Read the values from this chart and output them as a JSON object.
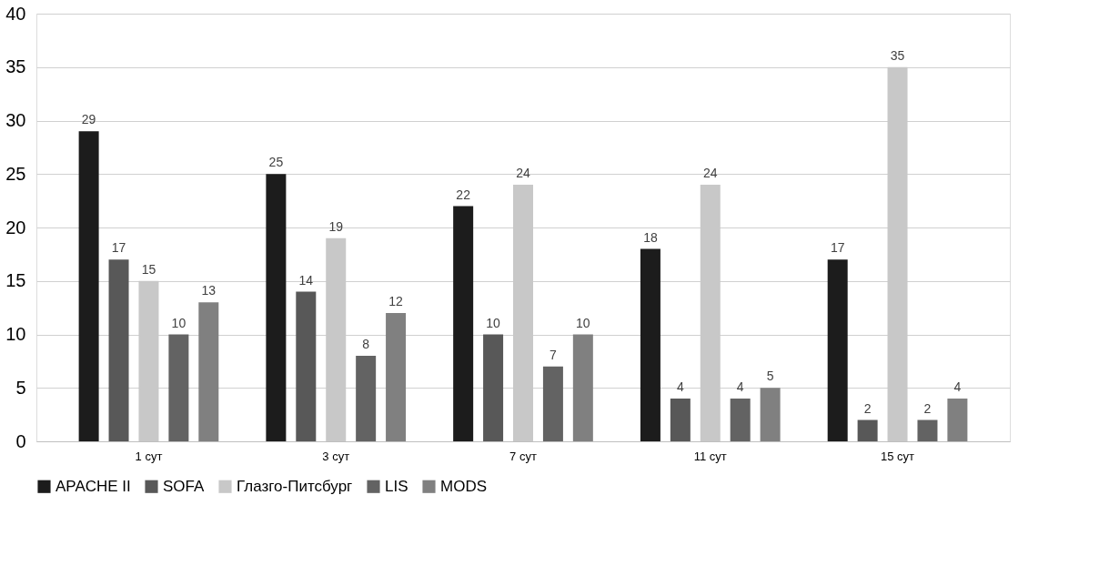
{
  "chart_data": {
    "type": "bar",
    "categories": [
      "1 сут",
      "3 сут",
      "7 сут",
      "11 сут",
      "15 сут"
    ],
    "series": [
      {
        "name": "APACHE II",
        "color": "#1c1c1c",
        "values": [
          29,
          25,
          22,
          18,
          17
        ]
      },
      {
        "name": "SOFA",
        "color": "#585858",
        "values": [
          17,
          14,
          10,
          4,
          2
        ]
      },
      {
        "name": "Глазго-Питсбург",
        "color": "#c8c8c8",
        "values": [
          15,
          19,
          24,
          24,
          35
        ]
      },
      {
        "name": "LIS",
        "color": "#636363",
        "values": [
          10,
          8,
          7,
          4,
          2
        ]
      },
      {
        "name": "MODS",
        "color": "#808080",
        "values": [
          13,
          12,
          10,
          5,
          4
        ]
      }
    ],
    "ylim": [
      0,
      40
    ],
    "yticks": [
      0,
      5,
      10,
      15,
      20,
      25,
      30,
      35,
      40
    ],
    "grid": "y",
    "legend": "bottom",
    "data_labels": true
  }
}
